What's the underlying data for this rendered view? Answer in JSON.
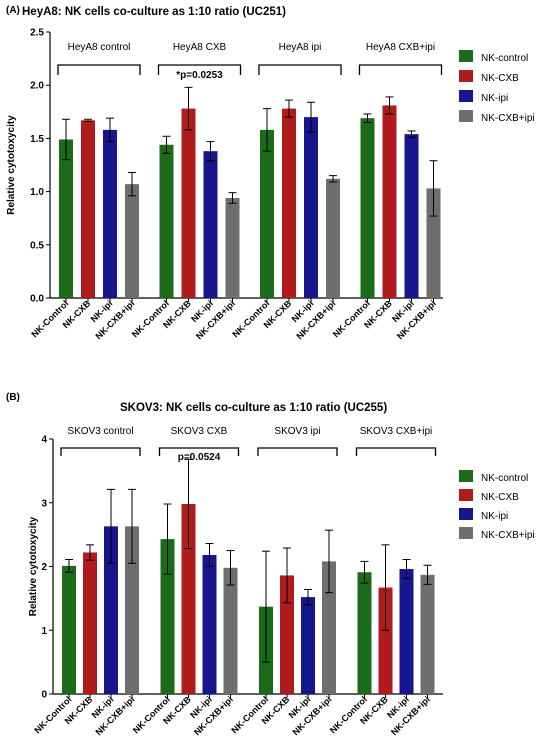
{
  "colors": {
    "NK-control": "#1b6b1b",
    "NK-CXB": "#b01c1c",
    "NK-ipi": "#16168f",
    "NK-CXB+ipi": "#6e6e6e"
  },
  "chart_data": [
    {
      "type": "bar",
      "panel_label": "(A)",
      "title": "HeyA8: NK cells co-culture as 1:10 ratio (UC251)",
      "ylabel": "Relative cytotoxycity",
      "xlabel": "",
      "ylim": [
        0,
        2.5
      ],
      "yticks": [
        "0.0",
        "0.5",
        "1.0",
        "1.5",
        "2.0",
        "2.5"
      ],
      "categories": [
        "NK-Control",
        "NK-CXB",
        "NK-ipi",
        "NK-CXB+ipi"
      ],
      "legend": [
        "NK-control",
        "NK-CXB",
        "NK-ipi",
        "NK-CXB+ipi"
      ],
      "legend_position": "right",
      "annotation": "*p=0.0253",
      "groups": [
        {
          "name": "HeyA8 control",
          "values": [
            1.49,
            1.67,
            1.58,
            1.07
          ],
          "errors": [
            0.19,
            0.01,
            0.11,
            0.11
          ]
        },
        {
          "name": "HeyA8 CXB",
          "values": [
            1.44,
            1.78,
            1.38,
            0.94
          ],
          "errors": [
            0.08,
            0.2,
            0.09,
            0.05
          ]
        },
        {
          "name": "HeyA8 ipi",
          "values": [
            1.58,
            1.78,
            1.7,
            1.12
          ],
          "errors": [
            0.2,
            0.08,
            0.14,
            0.03
          ]
        },
        {
          "name": "HeyA8 CXB+ipi",
          "values": [
            1.69,
            1.81,
            1.54,
            1.03
          ],
          "errors": [
            0.04,
            0.08,
            0.03,
            0.26
          ]
        }
      ]
    },
    {
      "type": "bar",
      "panel_label": "(B)",
      "title": "SKOV3: NK cells co-culture as 1:10 ratio (UC255)",
      "ylabel": "Relative cytotoxycity",
      "xlabel": "",
      "ylim": [
        0,
        4
      ],
      "yticks": [
        "0",
        "1",
        "2",
        "3",
        "4"
      ],
      "categories": [
        "NK-Control",
        "NK-CXB",
        "NK-ipi",
        "NK-CXB+ipi"
      ],
      "legend": [
        "NK-control",
        "NK-CXB",
        "NK-ipi",
        "NK-CXB+ipi"
      ],
      "legend_position": "right",
      "annotation": "p=0.0524",
      "groups": [
        {
          "name": "SKOV3 control",
          "values": [
            2.01,
            2.22,
            2.63,
            2.63
          ],
          "errors": [
            0.1,
            0.12,
            0.58,
            0.58
          ]
        },
        {
          "name": "SKOV3 CXB",
          "values": [
            2.43,
            2.98,
            2.18,
            1.98
          ],
          "errors": [
            0.55,
            0.7,
            0.18,
            0.27
          ]
        },
        {
          "name": "SKOV3 ipi",
          "values": [
            1.37,
            1.86,
            1.52,
            2.08
          ],
          "errors": [
            0.87,
            0.43,
            0.12,
            0.49
          ]
        },
        {
          "name": "SKOV3 CXB+ipi",
          "values": [
            1.91,
            1.67,
            1.96,
            1.87
          ],
          "errors": [
            0.17,
            0.67,
            0.15,
            0.15
          ]
        }
      ]
    }
  ]
}
